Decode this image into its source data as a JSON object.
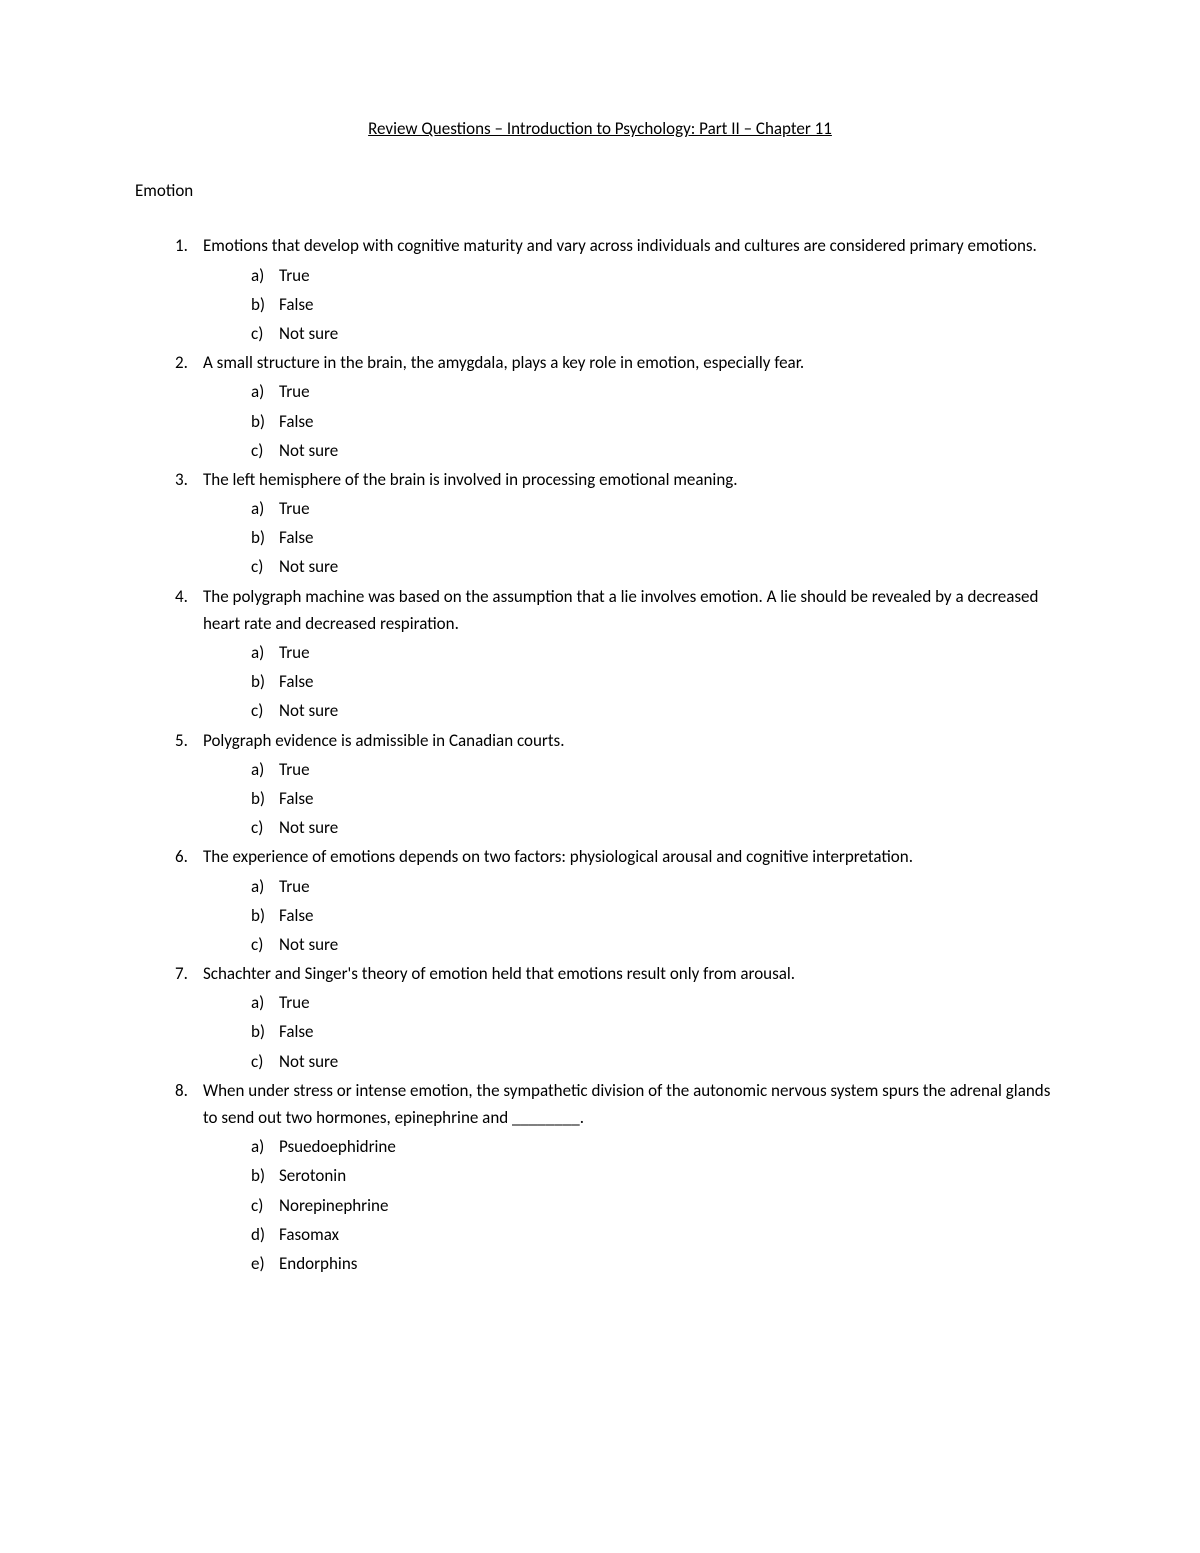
{
  "title": "Review Questions – Introduction to Psychology: Part II – Chapter 11",
  "section": "Emotion",
  "optionLetters": [
    "a)",
    "b)",
    "c)",
    "d)",
    "e)"
  ],
  "questions": [
    {
      "number": "1.",
      "text": "Emotions that develop with cognitive maturity and vary across individuals and cultures are considered primary emotions.",
      "options": [
        "True",
        "False",
        "Not sure"
      ]
    },
    {
      "number": "2.",
      "text": "A small structure in the brain, the amygdala, plays a key role in emotion, especially fear.",
      "options": [
        "True",
        "False",
        "Not sure"
      ]
    },
    {
      "number": "3.",
      "text": "The left hemisphere of the brain is involved in processing emotional meaning.",
      "options": [
        "True",
        "False",
        "Not sure"
      ]
    },
    {
      "number": "4.",
      "text": "The polygraph machine was based on the assumption that a lie involves emotion. A lie should be revealed by a decreased heart rate and decreased respiration.",
      "options": [
        "True",
        "False",
        "Not sure"
      ]
    },
    {
      "number": "5.",
      "text": "Polygraph evidence is admissible in Canadian courts.",
      "options": [
        "True",
        "False",
        "Not sure"
      ]
    },
    {
      "number": "6.",
      "text": "The experience of emotions depends on two factors: physiological arousal and cognitive interpretation.",
      "options": [
        "True",
        "False",
        "Not sure"
      ]
    },
    {
      "number": "7.",
      "text": "Schachter and Singer's theory of emotion held that emotions result only from arousal.",
      "options": [
        "True",
        "False",
        "Not sure"
      ]
    },
    {
      "number": "8.",
      "text": "When under stress or intense emotion, the sympathetic division of the autonomic nervous system spurs the adrenal glands to send out two hormones, epinephrine and ________.",
      "options": [
        "Psuedoephidrine",
        "Serotonin",
        "Norepinephrine",
        "Fasomax",
        "Endorphins"
      ]
    }
  ],
  "colors": {
    "background": "#ffffff",
    "text": "#000000"
  },
  "typography": {
    "font_family": "Calibri",
    "font_size_pt": 11
  }
}
